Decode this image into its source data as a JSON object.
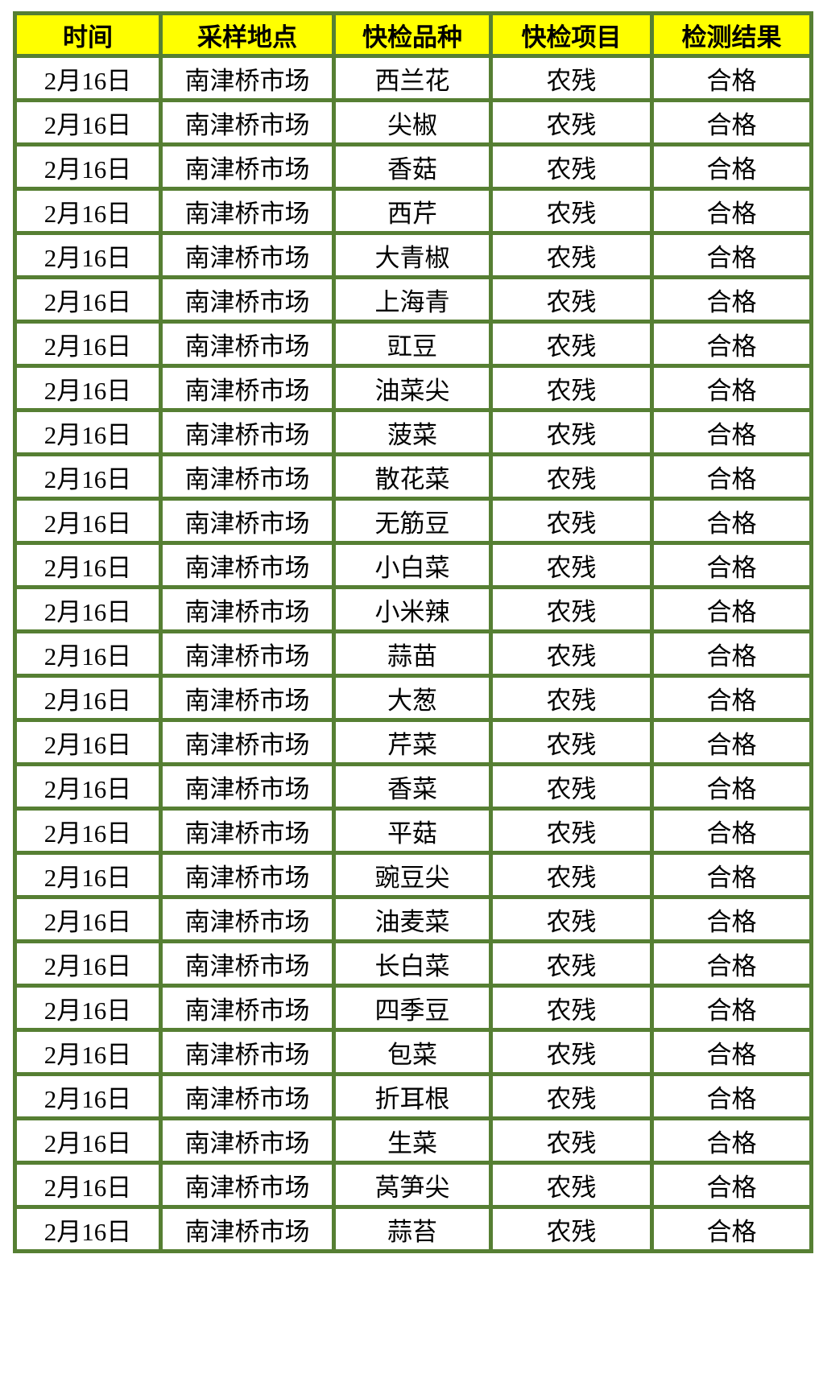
{
  "table": {
    "header_bg": "#ffff00",
    "border_color": "#567f33",
    "text_color": "#000000",
    "columns": [
      "时间",
      "采样地点",
      "快检品种",
      "快检项目",
      "检测结果"
    ],
    "rows": [
      {
        "date": "2月16日",
        "location": "南津桥市场",
        "variety": "西兰花",
        "item": "农残",
        "result": "合格"
      },
      {
        "date": "2月16日",
        "location": "南津桥市场",
        "variety": "尖椒",
        "item": "农残",
        "result": "合格"
      },
      {
        "date": "2月16日",
        "location": "南津桥市场",
        "variety": "香菇",
        "item": "农残",
        "result": "合格"
      },
      {
        "date": "2月16日",
        "location": "南津桥市场",
        "variety": "西芹",
        "item": "农残",
        "result": "合格"
      },
      {
        "date": "2月16日",
        "location": "南津桥市场",
        "variety": "大青椒",
        "item": "农残",
        "result": "合格"
      },
      {
        "date": "2月16日",
        "location": "南津桥市场",
        "variety": "上海青",
        "item": "农残",
        "result": "合格"
      },
      {
        "date": "2月16日",
        "location": "南津桥市场",
        "variety": "豇豆",
        "item": "农残",
        "result": "合格"
      },
      {
        "date": "2月16日",
        "location": "南津桥市场",
        "variety": "油菜尖",
        "item": "农残",
        "result": "合格"
      },
      {
        "date": "2月16日",
        "location": "南津桥市场",
        "variety": "菠菜",
        "item": "农残",
        "result": "合格"
      },
      {
        "date": "2月16日",
        "location": "南津桥市场",
        "variety": "散花菜",
        "item": "农残",
        "result": "合格"
      },
      {
        "date": "2月16日",
        "location": "南津桥市场",
        "variety": "无筋豆",
        "item": "农残",
        "result": "合格"
      },
      {
        "date": "2月16日",
        "location": "南津桥市场",
        "variety": "小白菜",
        "item": "农残",
        "result": "合格"
      },
      {
        "date": "2月16日",
        "location": "南津桥市场",
        "variety": "小米辣",
        "item": "农残",
        "result": "合格"
      },
      {
        "date": "2月16日",
        "location": "南津桥市场",
        "variety": "蒜苗",
        "item": "农残",
        "result": "合格"
      },
      {
        "date": "2月16日",
        "location": "南津桥市场",
        "variety": "大葱",
        "item": "农残",
        "result": "合格"
      },
      {
        "date": "2月16日",
        "location": "南津桥市场",
        "variety": "芹菜",
        "item": "农残",
        "result": "合格"
      },
      {
        "date": "2月16日",
        "location": "南津桥市场",
        "variety": "香菜",
        "item": "农残",
        "result": "合格"
      },
      {
        "date": "2月16日",
        "location": "南津桥市场",
        "variety": "平菇",
        "item": "农残",
        "result": "合格"
      },
      {
        "date": "2月16日",
        "location": "南津桥市场",
        "variety": "豌豆尖",
        "item": "农残",
        "result": "合格"
      },
      {
        "date": "2月16日",
        "location": "南津桥市场",
        "variety": "油麦菜",
        "item": "农残",
        "result": "合格"
      },
      {
        "date": "2月16日",
        "location": "南津桥市场",
        "variety": "长白菜",
        "item": "农残",
        "result": "合格"
      },
      {
        "date": "2月16日",
        "location": "南津桥市场",
        "variety": "四季豆",
        "item": "农残",
        "result": "合格"
      },
      {
        "date": "2月16日",
        "location": "南津桥市场",
        "variety": "包菜",
        "item": "农残",
        "result": "合格"
      },
      {
        "date": "2月16日",
        "location": "南津桥市场",
        "variety": "折耳根",
        "item": "农残",
        "result": "合格"
      },
      {
        "date": "2月16日",
        "location": "南津桥市场",
        "variety": "生菜",
        "item": "农残",
        "result": "合格"
      },
      {
        "date": "2月16日",
        "location": "南津桥市场",
        "variety": "莴笋尖",
        "item": "农残",
        "result": "合格"
      },
      {
        "date": "2月16日",
        "location": "南津桥市场",
        "variety": "蒜苔",
        "item": "农残",
        "result": "合格"
      }
    ]
  }
}
